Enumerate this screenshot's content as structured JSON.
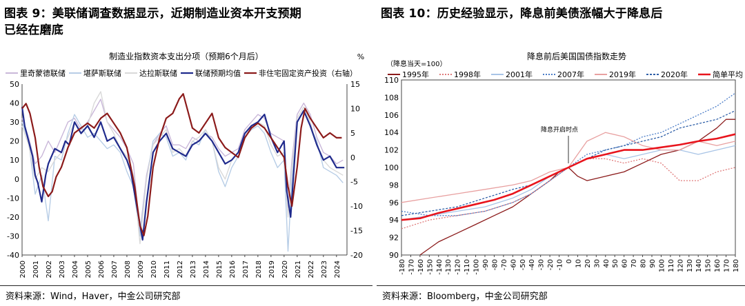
{
  "left": {
    "heading_line1": "图表 9：美联储调查数据显示，近期制造业资本开支预期",
    "heading_line2": "已经在磨底",
    "source": "资料来源：Wind，Haver，中金公司研究部",
    "chart_data": {
      "type": "line",
      "title": "制造业指数资本支出分项（预期6个月后）",
      "y2unit": "%",
      "x_ticks": [
        "2000",
        "2001",
        "2002",
        "2003",
        "2004",
        "2005",
        "2006",
        "2007",
        "2008",
        "2009",
        "2010",
        "2011",
        "2012",
        "2013",
        "2014",
        "2015",
        "2016",
        "2017",
        "2018",
        "2019",
        "2020",
        "2021",
        "2022",
        "2023",
        "2024"
      ],
      "xlim": [
        2000,
        2024.8
      ],
      "ylim": [
        -40,
        50
      ],
      "y_ticks": [
        -40,
        -30,
        -20,
        -10,
        0,
        10,
        20,
        30,
        40,
        50
      ],
      "y2lim": [
        -20,
        15
      ],
      "y2_ticks": [
        -20,
        -15,
        -10,
        -5,
        0,
        5,
        10,
        15
      ],
      "series": [
        {
          "name": "里奇蒙德联储",
          "axis": "left",
          "color": "#c9b7d9",
          "x": [
            2000,
            2000.5,
            2001,
            2001.5,
            2002,
            2002.5,
            2003,
            2003.5,
            2004,
            2004.5,
            2005,
            2005.5,
            2006,
            2006.5,
            2007,
            2007.5,
            2008,
            2008.5,
            2009,
            2009.5,
            2010,
            2010.5,
            2011,
            2011.5,
            2012,
            2012.5,
            2013,
            2013.5,
            2014,
            2014.5,
            2015,
            2015.5,
            2016,
            2016.5,
            2017,
            2017.5,
            2018,
            2018.5,
            2019,
            2019.5,
            2020,
            2020.3,
            2020.6,
            2021,
            2021.5,
            2022,
            2022.5,
            2023,
            2023.5,
            2024,
            2024.5
          ],
          "y": [
            32,
            22,
            8,
            12,
            20,
            14,
            22,
            30,
            32,
            26,
            30,
            36,
            42,
            30,
            26,
            22,
            16,
            8,
            -28,
            2,
            18,
            24,
            28,
            18,
            18,
            16,
            22,
            20,
            24,
            22,
            16,
            12,
            14,
            16,
            26,
            30,
            34,
            32,
            24,
            22,
            20,
            -15,
            10,
            34,
            40,
            34,
            22,
            14,
            12,
            8,
            10
          ]
        },
        {
          "name": "堪萨斯联储",
          "axis": "left",
          "color": "#b7cde6",
          "x": [
            2000,
            2000.5,
            2001,
            2001.5,
            2002,
            2002.5,
            2003,
            2003.5,
            2004,
            2004.5,
            2005,
            2005.5,
            2006,
            2006.5,
            2007,
            2007.5,
            2008,
            2008.5,
            2009,
            2009.5,
            2010,
            2010.5,
            2011,
            2011.5,
            2012,
            2012.5,
            2013,
            2013.5,
            2014,
            2014.5,
            2015,
            2015.5,
            2016,
            2016.5,
            2017,
            2017.5,
            2018,
            2018.5,
            2019,
            2019.5,
            2020,
            2020.3,
            2020.6,
            2021,
            2021.5,
            2022,
            2022.5,
            2023,
            2023.5,
            2024,
            2024.5
          ],
          "y": [
            30,
            20,
            -8,
            2,
            -22,
            12,
            10,
            24,
            34,
            28,
            22,
            24,
            20,
            16,
            18,
            14,
            4,
            -4,
            -30,
            0,
            20,
            24,
            22,
            12,
            14,
            10,
            20,
            18,
            26,
            20,
            4,
            -4,
            6,
            12,
            22,
            26,
            28,
            24,
            14,
            6,
            10,
            -38,
            0,
            30,
            36,
            28,
            20,
            6,
            4,
            2,
            -2
          ]
        },
        {
          "name": "达拉斯联储",
          "axis": "left",
          "color": "#d9d9d9",
          "x": [
            2000,
            2000.5,
            2001,
            2001.5,
            2002,
            2002.5,
            2003,
            2003.5,
            2004,
            2004.5,
            2005,
            2005.5,
            2006,
            2006.5,
            2007,
            2007.5,
            2008,
            2008.5,
            2009,
            2009.5,
            2010,
            2010.5,
            2011,
            2011.5,
            2012,
            2012.5,
            2013,
            2013.5,
            2014,
            2014.5,
            2015,
            2015.5,
            2016,
            2016.5,
            2017,
            2017.5,
            2018,
            2018.5,
            2019,
            2019.5,
            2020,
            2020.3,
            2020.6,
            2021,
            2021.5,
            2022,
            2022.5,
            2023,
            2023.5,
            2024,
            2024.5
          ],
          "y": [
            28,
            18,
            0,
            6,
            4,
            10,
            14,
            22,
            30,
            24,
            28,
            40,
            46,
            30,
            24,
            16,
            12,
            2,
            -34,
            0,
            18,
            22,
            26,
            14,
            16,
            12,
            20,
            22,
            26,
            20,
            6,
            0,
            10,
            14,
            24,
            28,
            30,
            28,
            18,
            12,
            14,
            -20,
            6,
            32,
            38,
            30,
            18,
            10,
            6,
            4,
            2
          ]
        },
        {
          "name": "联储预期均值",
          "axis": "left",
          "color": "#1f2a8c",
          "width": 2.2,
          "x": [
            2000,
            2000.2,
            2000.5,
            2000.8,
            2001,
            2001.2,
            2001.5,
            2001.8,
            2002,
            2002.5,
            2003,
            2003.3,
            2003.6,
            2004,
            2004.5,
            2005,
            2005.5,
            2006,
            2006.5,
            2007,
            2007.5,
            2008,
            2008.3,
            2008.6,
            2009,
            2009.2,
            2009.5,
            2010,
            2010.5,
            2011,
            2011.5,
            2012,
            2012.5,
            2013,
            2013.5,
            2014,
            2014.5,
            2015,
            2015.5,
            2016,
            2016.5,
            2017,
            2017.5,
            2018,
            2018.5,
            2019,
            2019.5,
            2020,
            2020.2,
            2020.5,
            2020.8,
            2021,
            2021.5,
            2022,
            2022.5,
            2023,
            2023.5,
            2024,
            2024.3,
            2024.6
          ],
          "y": [
            38,
            28,
            20,
            12,
            2,
            -2,
            -12,
            2,
            8,
            16,
            14,
            20,
            18,
            30,
            24,
            28,
            22,
            30,
            20,
            22,
            16,
            10,
            4,
            -8,
            -24,
            -32,
            -12,
            14,
            20,
            24,
            16,
            14,
            12,
            18,
            20,
            24,
            20,
            14,
            8,
            10,
            14,
            24,
            28,
            30,
            34,
            22,
            14,
            20,
            -6,
            -20,
            10,
            30,
            36,
            28,
            18,
            10,
            12,
            6,
            6,
            6
          ]
        },
        {
          "name": "非住宅固定资产投资（右轴）",
          "axis": "right",
          "color": "#8b1a1a",
          "width": 2.2,
          "x": [
            2000,
            2000.3,
            2000.6,
            2001,
            2001.3,
            2001.6,
            2002,
            2002.3,
            2002.6,
            2003,
            2003.5,
            2004,
            2004.5,
            2005,
            2005.5,
            2006,
            2006.5,
            2007,
            2007.5,
            2008,
            2008.3,
            2008.6,
            2009,
            2009.3,
            2009.6,
            2010,
            2010.5,
            2011,
            2011.5,
            2012,
            2012.3,
            2012.6,
            2013,
            2013.5,
            2014,
            2014.5,
            2015,
            2015.5,
            2016,
            2016.5,
            2017,
            2017.5,
            2018,
            2018.5,
            2019,
            2019.5,
            2020,
            2020.3,
            2020.6,
            2021,
            2021.3,
            2021.6,
            2022,
            2022.5,
            2023,
            2023.5,
            2024,
            2024.4
          ],
          "y": [
            10,
            11,
            9,
            4,
            -2,
            -6,
            -8,
            -7,
            -4,
            -2,
            2,
            5,
            6,
            7,
            6,
            8,
            9,
            7,
            5,
            2,
            -2,
            -6,
            -14,
            -16,
            -12,
            -2,
            4,
            8,
            9,
            12,
            13,
            10,
            6,
            5,
            7,
            9,
            4,
            2,
            1,
            0,
            4,
            6,
            7,
            6,
            4,
            2,
            0,
            -6,
            -10,
            -2,
            6,
            10,
            8,
            6,
            4,
            5,
            4,
            4
          ]
        }
      ]
    }
  },
  "right": {
    "heading": "图表 10：历史经验显示，降息前美债涨幅大于降息后",
    "source": "资料来源：Bloomberg，中金公司研究部",
    "chart_data": {
      "type": "line",
      "title": "降息前后美国国债指数走势",
      "subtitle": "（降息当天=100）",
      "annotation": "降息开启时点",
      "xlim": [
        -180,
        180
      ],
      "x_ticks": [
        -180,
        -170,
        -160,
        -150,
        -140,
        -130,
        -120,
        -110,
        -100,
        -90,
        -80,
        -70,
        -60,
        -50,
        -40,
        -30,
        -20,
        -10,
        0,
        10,
        20,
        30,
        40,
        50,
        60,
        70,
        80,
        90,
        100,
        110,
        120,
        130,
        140,
        150,
        160,
        170,
        180
      ],
      "ylim": [
        90,
        110
      ],
      "y_ticks": [
        90,
        92,
        94,
        96,
        98,
        100,
        102,
        104,
        106,
        108,
        110
      ],
      "series": [
        {
          "name": "1995年",
          "color": "#8b1a1a",
          "dash": "",
          "x": [
            -160,
            -140,
            -120,
            -100,
            -80,
            -60,
            -40,
            -20,
            -10,
            0,
            10,
            20,
            40,
            60,
            80,
            100,
            120,
            140,
            160,
            170,
            180
          ],
          "y": [
            90,
            91.5,
            92.5,
            93.5,
            94.5,
            95.5,
            97,
            98.5,
            99.5,
            100,
            99,
            98.5,
            99,
            99.5,
            100.5,
            101.5,
            102,
            103,
            104.5,
            105.5,
            105.5
          ]
        },
        {
          "name": "1998年",
          "color": "#e07a7a",
          "dash": "2,2",
          "x": [
            -180,
            -150,
            -120,
            -90,
            -60,
            -40,
            -20,
            0,
            20,
            40,
            60,
            80,
            100,
            120,
            140,
            160,
            180
          ],
          "y": [
            93,
            94,
            94.5,
            95,
            96,
            97,
            98.5,
            100,
            101,
            101,
            100.5,
            101,
            100.5,
            98.5,
            98.5,
            99.5,
            100
          ]
        },
        {
          "name": "2001年",
          "color": "#a8c4e6",
          "dash": "",
          "x": [
            -180,
            -150,
            -120,
            -90,
            -60,
            -40,
            -20,
            0,
            20,
            40,
            60,
            80,
            100,
            120,
            140,
            160,
            180
          ],
          "y": [
            94,
            94.5,
            95,
            95.5,
            96.5,
            97.5,
            99,
            100,
            101,
            101.5,
            101,
            101.5,
            102,
            102,
            101.5,
            102,
            102.5
          ]
        },
        {
          "name": "2007年",
          "color": "#4a7cc7",
          "dash": "2,2",
          "x": [
            -180,
            -150,
            -120,
            -90,
            -60,
            -40,
            -20,
            0,
            20,
            40,
            60,
            80,
            100,
            120,
            140,
            160,
            180
          ],
          "y": [
            95,
            94.5,
            94.5,
            95,
            96,
            97,
            98.5,
            100,
            101.5,
            102,
            102.5,
            103.5,
            104,
            105,
            106,
            107,
            108.5
          ]
        },
        {
          "name": "2019年",
          "color": "#e8a0a0",
          "dash": "",
          "x": [
            -180,
            -150,
            -120,
            -90,
            -60,
            -40,
            -20,
            0,
            20,
            40,
            60,
            80,
            100,
            120,
            140,
            160,
            180
          ],
          "y": [
            96,
            96.5,
            97,
            97.5,
            98,
            98.5,
            99.5,
            100,
            103,
            104,
            103.5,
            102.5,
            102,
            102,
            103,
            102.5,
            103
          ]
        },
        {
          "name": "2020年",
          "color": "#2f5fa7",
          "dash": "3,2",
          "x": [
            -180,
            -150,
            -120,
            -90,
            -60,
            -40,
            -20,
            0,
            20,
            40,
            60,
            80,
            100,
            120,
            140,
            160,
            180
          ],
          "y": [
            94.5,
            95,
            95.5,
            96.5,
            97.5,
            98,
            99,
            100,
            101,
            102,
            102.5,
            103,
            103.5,
            104.5,
            105,
            105.5,
            106.5
          ]
        },
        {
          "name": "简单平均",
          "color": "#e8141c",
          "dash": "",
          "width": 2.6,
          "x": [
            -180,
            -160,
            -140,
            -120,
            -100,
            -80,
            -60,
            -40,
            -20,
            0,
            20,
            40,
            60,
            80,
            100,
            120,
            140,
            160,
            180
          ],
          "y": [
            94,
            94.2,
            94.8,
            95.3,
            95.8,
            96.3,
            97,
            98,
            99,
            100,
            101,
            101.5,
            102,
            102,
            102.3,
            102.6,
            103,
            103.3,
            103.8
          ]
        }
      ]
    }
  }
}
